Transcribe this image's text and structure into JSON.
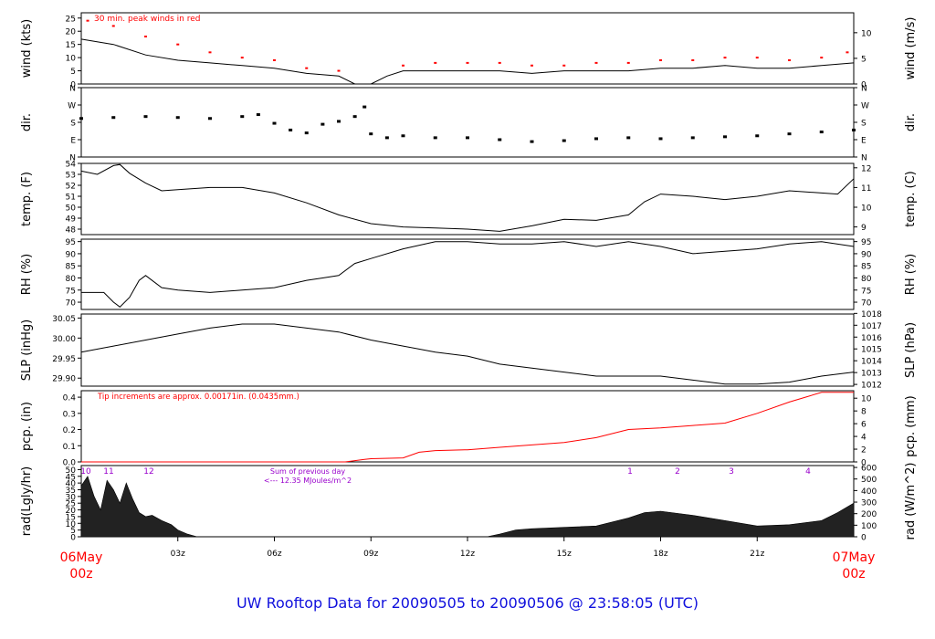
{
  "footer_title": "UW Rooftop Data for 20090505  to  20090506 @ 23:58:05  (UTC)",
  "colors": {
    "axis": "#000000",
    "start_end": "#ff0000",
    "title": "#1010dd",
    "annotation": "#ff0000",
    "sun": "#9900cc",
    "precip": "#ff0000"
  },
  "time_axis": {
    "ticks": [
      "03z",
      "06z",
      "09z",
      "12z",
      "15z",
      "18z",
      "21z"
    ],
    "start_label": [
      "06May",
      "00z"
    ],
    "end_label": [
      "07May",
      "00z"
    ]
  },
  "chart_data": [
    {
      "id": "wind",
      "type": "line",
      "ylabel_left": "wind (kts)",
      "ylabel_right": "wind (m/s)",
      "ylim": [
        0,
        27
      ],
      "yticks_left": [
        "0",
        "5",
        "10",
        "15",
        "20",
        "25"
      ],
      "yticks_right": [
        "0",
        "5",
        "10"
      ],
      "annotation": "30 min. peak winds in red",
      "series": [
        {
          "x": [
            0,
            1,
            2,
            3,
            4,
            5,
            6,
            7,
            8,
            8.5,
            9,
            9.5,
            10,
            11,
            12,
            13,
            14,
            15,
            16,
            17,
            18,
            19,
            20,
            21,
            22,
            23,
            24
          ],
          "y": [
            17,
            15,
            11,
            9,
            8,
            7,
            6,
            4,
            3,
            0,
            0,
            3,
            5,
            5,
            5,
            5,
            4,
            5,
            5,
            5,
            6,
            6,
            7,
            6,
            6,
            7,
            8
          ]
        },
        {
          "name": "peak",
          "x": [
            0.2,
            1,
            2,
            3,
            4,
            5,
            6,
            7,
            8,
            10,
            11,
            12,
            13,
            14,
            15,
            16,
            17,
            18,
            19,
            20,
            21,
            22,
            23,
            23.8
          ],
          "y": [
            24,
            22,
            18,
            15,
            12,
            10,
            9,
            6,
            5,
            7,
            8,
            8,
            8,
            7,
            7,
            8,
            8,
            9,
            9,
            10,
            10,
            9,
            10,
            12
          ]
        }
      ]
    },
    {
      "id": "dir",
      "type": "scatter",
      "ylabel_left": "dir.",
      "ylabel_right": "dir.",
      "ylim": [
        0,
        360
      ],
      "yticks_left": [
        "N",
        "E",
        "S",
        "W",
        "N"
      ],
      "yticks_right": [
        "N",
        "E",
        "S",
        "W",
        "N"
      ],
      "series": [
        {
          "x": [
            0,
            1,
            2,
            3,
            4,
            5,
            5.5,
            6,
            6.5,
            7,
            7.5,
            8,
            8.5,
            8.8,
            9,
            9.5,
            10,
            11,
            12,
            13,
            14,
            15,
            16,
            17,
            18,
            19,
            20,
            21,
            22,
            23,
            24
          ],
          "y": [
            200,
            205,
            210,
            205,
            200,
            210,
            220,
            175,
            140,
            125,
            170,
            185,
            210,
            260,
            120,
            100,
            110,
            100,
            100,
            90,
            80,
            85,
            95,
            100,
            95,
            100,
            105,
            110,
            120,
            130,
            140
          ]
        }
      ]
    },
    {
      "id": "temp",
      "type": "line",
      "ylabel_left": "temp. (F)",
      "ylabel_right": "temp. (C)",
      "ylim": [
        47.5,
        54
      ],
      "yticks_left": [
        "48",
        "49",
        "50",
        "51",
        "52",
        "53",
        "54"
      ],
      "yticks_right": [
        "9",
        "10",
        "11",
        "12"
      ],
      "series": [
        {
          "x": [
            0,
            0.5,
            1,
            1.2,
            1.5,
            2,
            2.5,
            3,
            4,
            5,
            6,
            7,
            8,
            9,
            10,
            11,
            12,
            13,
            14,
            15,
            16,
            17,
            17.5,
            18,
            19,
            20,
            21,
            22,
            23,
            23.5,
            24
          ],
          "y": [
            53.3,
            53.0,
            53.8,
            53.9,
            53.1,
            52.2,
            51.5,
            51.6,
            51.8,
            51.8,
            51.3,
            50.4,
            49.3,
            48.5,
            48.2,
            48.1,
            48.0,
            47.8,
            48.3,
            48.9,
            48.8,
            49.3,
            50.5,
            51.2,
            51.0,
            50.7,
            51.0,
            51.5,
            51.3,
            51.2,
            52.6
          ]
        }
      ]
    },
    {
      "id": "rh",
      "type": "line",
      "ylabel_left": "RH (%)",
      "ylabel_right": "RH (%)",
      "ylim": [
        67,
        96
      ],
      "yticks_left": [
        "70",
        "75",
        "80",
        "85",
        "90",
        "95"
      ],
      "yticks_right": [
        "70",
        "75",
        "80",
        "85",
        "90",
        "95"
      ],
      "series": [
        {
          "x": [
            0,
            0.7,
            1,
            1.2,
            1.5,
            1.8,
            2,
            2.5,
            3,
            4,
            5,
            6,
            7,
            7.5,
            8,
            8.5,
            9,
            10,
            11,
            12,
            13,
            14,
            15,
            16,
            17,
            18,
            19,
            20,
            21,
            22,
            23,
            24
          ],
          "y": [
            74,
            74,
            70,
            68,
            72,
            79,
            81,
            76,
            75,
            74,
            75,
            76,
            79,
            80,
            81,
            86,
            88,
            92,
            95,
            95,
            94,
            94,
            95,
            93,
            95,
            93,
            90,
            91,
            92,
            94,
            95,
            93
          ]
        }
      ]
    },
    {
      "id": "slp",
      "type": "line",
      "ylabel_left": "SLP (inHg)",
      "ylabel_right": "SLP (hPa)",
      "ylim": [
        29.88,
        30.06
      ],
      "yticks_left": [
        "29.90",
        "29.95",
        "30.00",
        "30.05"
      ],
      "yticks_right": [
        "1012",
        "1013",
        "1014",
        "1015",
        "1016",
        "1017",
        "1018"
      ],
      "series": [
        {
          "x": [
            0,
            1,
            2,
            3,
            4,
            5,
            6,
            7,
            8,
            9,
            10,
            11,
            12,
            13,
            14,
            15,
            16,
            17,
            18,
            19,
            20,
            21,
            22,
            23,
            24
          ],
          "y": [
            29.965,
            29.98,
            29.995,
            30.01,
            30.025,
            30.035,
            30.035,
            30.025,
            30.015,
            29.995,
            29.98,
            29.965,
            29.955,
            29.935,
            29.925,
            29.915,
            29.905,
            29.905,
            29.905,
            29.895,
            29.885,
            29.885,
            29.89,
            29.905,
            29.915
          ]
        }
      ]
    },
    {
      "id": "pcp",
      "type": "line",
      "ylabel_left": "pcp. (in)",
      "ylabel_right": "pcp. (mm)",
      "ylim": [
        0,
        0.44
      ],
      "yticks_left": [
        "0.0",
        "0.1",
        "0.2",
        "0.3",
        "0.4"
      ],
      "yticks_right": [
        "0",
        "2",
        "4",
        "6",
        "8",
        "10"
      ],
      "annotation": "Tip increments are approx. 0.00171in. (0.0435mm.)",
      "series": [
        {
          "x": [
            0,
            8.2,
            8.8,
            9,
            10,
            10.5,
            11,
            12,
            13,
            14,
            15,
            16,
            17,
            18,
            19,
            20,
            21,
            22,
            22.5,
            23,
            24
          ],
          "y": [
            0,
            0,
            0.015,
            0.02,
            0.025,
            0.06,
            0.07,
            0.075,
            0.09,
            0.105,
            0.12,
            0.15,
            0.2,
            0.21,
            0.225,
            0.24,
            0.3,
            0.37,
            0.4,
            0.43,
            0.43
          ]
        }
      ]
    },
    {
      "id": "rad",
      "type": "area",
      "ylabel_left": "rad(Lgly/hr)",
      "ylabel_right": "rad (W/m^2)",
      "ylim": [
        0,
        53
      ],
      "yticks_left": [
        "0",
        "5",
        "10",
        "15",
        "20",
        "25",
        "30",
        "35",
        "40",
        "45",
        "50"
      ],
      "yticks_right": [
        "0",
        "100",
        "200",
        "300",
        "400",
        "500",
        "600"
      ],
      "annotation": [
        "Sum of previous day",
        "<--- 12.35 MJoules/m^2"
      ],
      "hour_labels": [
        "10",
        "11",
        "12",
        "1",
        "2",
        "3",
        "4"
      ],
      "series": [
        {
          "x": [
            0,
            0.2,
            0.4,
            0.6,
            0.8,
            1.0,
            1.2,
            1.4,
            1.6,
            1.8,
            2.0,
            2.2,
            2.5,
            2.8,
            3.0,
            3.3,
            3.6,
            12.6,
            13.0,
            13.5,
            14,
            15,
            16,
            17,
            17.5,
            18,
            19,
            20,
            21,
            22,
            23,
            23.5,
            24
          ],
          "y": [
            38,
            45,
            30,
            20,
            42,
            35,
            25,
            40,
            28,
            18,
            15,
            16,
            12,
            9,
            5,
            2,
            0,
            0,
            2,
            5,
            6,
            7,
            8,
            14,
            18,
            19,
            16,
            12,
            8,
            9,
            12,
            18,
            25
          ]
        }
      ]
    }
  ]
}
